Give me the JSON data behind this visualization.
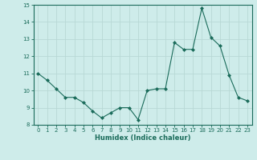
{
  "x": [
    0,
    1,
    2,
    3,
    4,
    5,
    6,
    7,
    8,
    9,
    10,
    11,
    12,
    13,
    14,
    15,
    16,
    17,
    18,
    19,
    20,
    21,
    22,
    23
  ],
  "y": [
    11.0,
    10.6,
    10.1,
    9.6,
    9.6,
    9.3,
    8.8,
    8.4,
    8.7,
    9.0,
    9.0,
    8.3,
    10.0,
    10.1,
    10.1,
    12.8,
    12.4,
    12.4,
    14.8,
    13.1,
    12.6,
    10.9,
    9.6,
    9.4
  ],
  "ylim": [
    8,
    15
  ],
  "yticks": [
    8,
    9,
    10,
    11,
    12,
    13,
    14,
    15
  ],
  "xticks": [
    0,
    1,
    2,
    3,
    4,
    5,
    6,
    7,
    8,
    9,
    10,
    11,
    12,
    13,
    14,
    15,
    16,
    17,
    18,
    19,
    20,
    21,
    22,
    23
  ],
  "xlabel": "Humidex (Indice chaleur)",
  "line_color": "#1a6b5a",
  "marker_color": "#1a6b5a",
  "bg_color": "#ceecea",
  "grid_color": "#b8d8d5",
  "tick_fontsize": 5.0,
  "xlabel_fontsize": 6.0
}
